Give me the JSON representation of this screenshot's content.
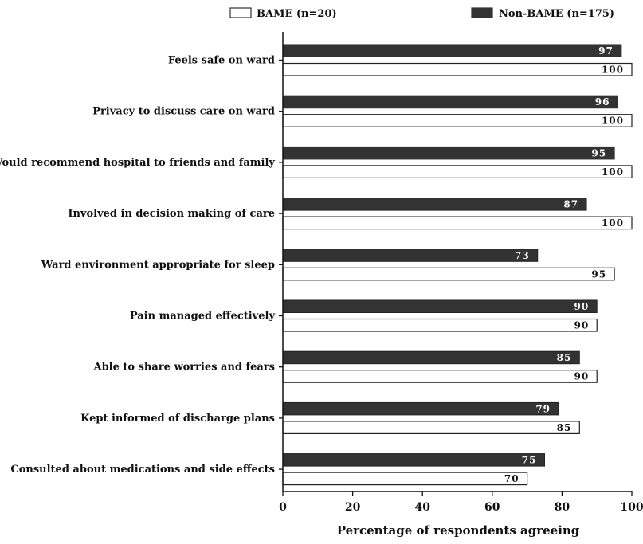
{
  "chart_data": {
    "type": "bar",
    "orientation": "horizontal",
    "title": "",
    "xlabel": "Percentage of respondents agreeing",
    "ylabel": "",
    "xlim": [
      0,
      100
    ],
    "xticks": [
      0,
      20,
      40,
      60,
      80,
      100
    ],
    "grid": false,
    "legend_position": "top",
    "categories": [
      "Feels safe on ward",
      "Privacy to discuss care on ward",
      "Would recommend hospital to friends and family",
      "Involved in decision making of care",
      "Ward environment appropriate for sleep",
      "Pain managed effectively",
      "Able to share worries and fears",
      "Kept informed of discharge plans",
      "Consulted about medications and side effects"
    ],
    "series": [
      {
        "name": "Non-BAME (n=175)",
        "color": "#333333",
        "values": [
          97,
          96,
          95,
          87,
          73,
          90,
          85,
          79,
          75
        ]
      },
      {
        "name": "BAME (n=20)",
        "color": "#ffffff",
        "values": [
          100,
          100,
          100,
          100,
          95,
          90,
          90,
          85,
          70
        ]
      }
    ],
    "legend": [
      "BAME (n=20)",
      "Non-BAME (n=175)"
    ]
  }
}
